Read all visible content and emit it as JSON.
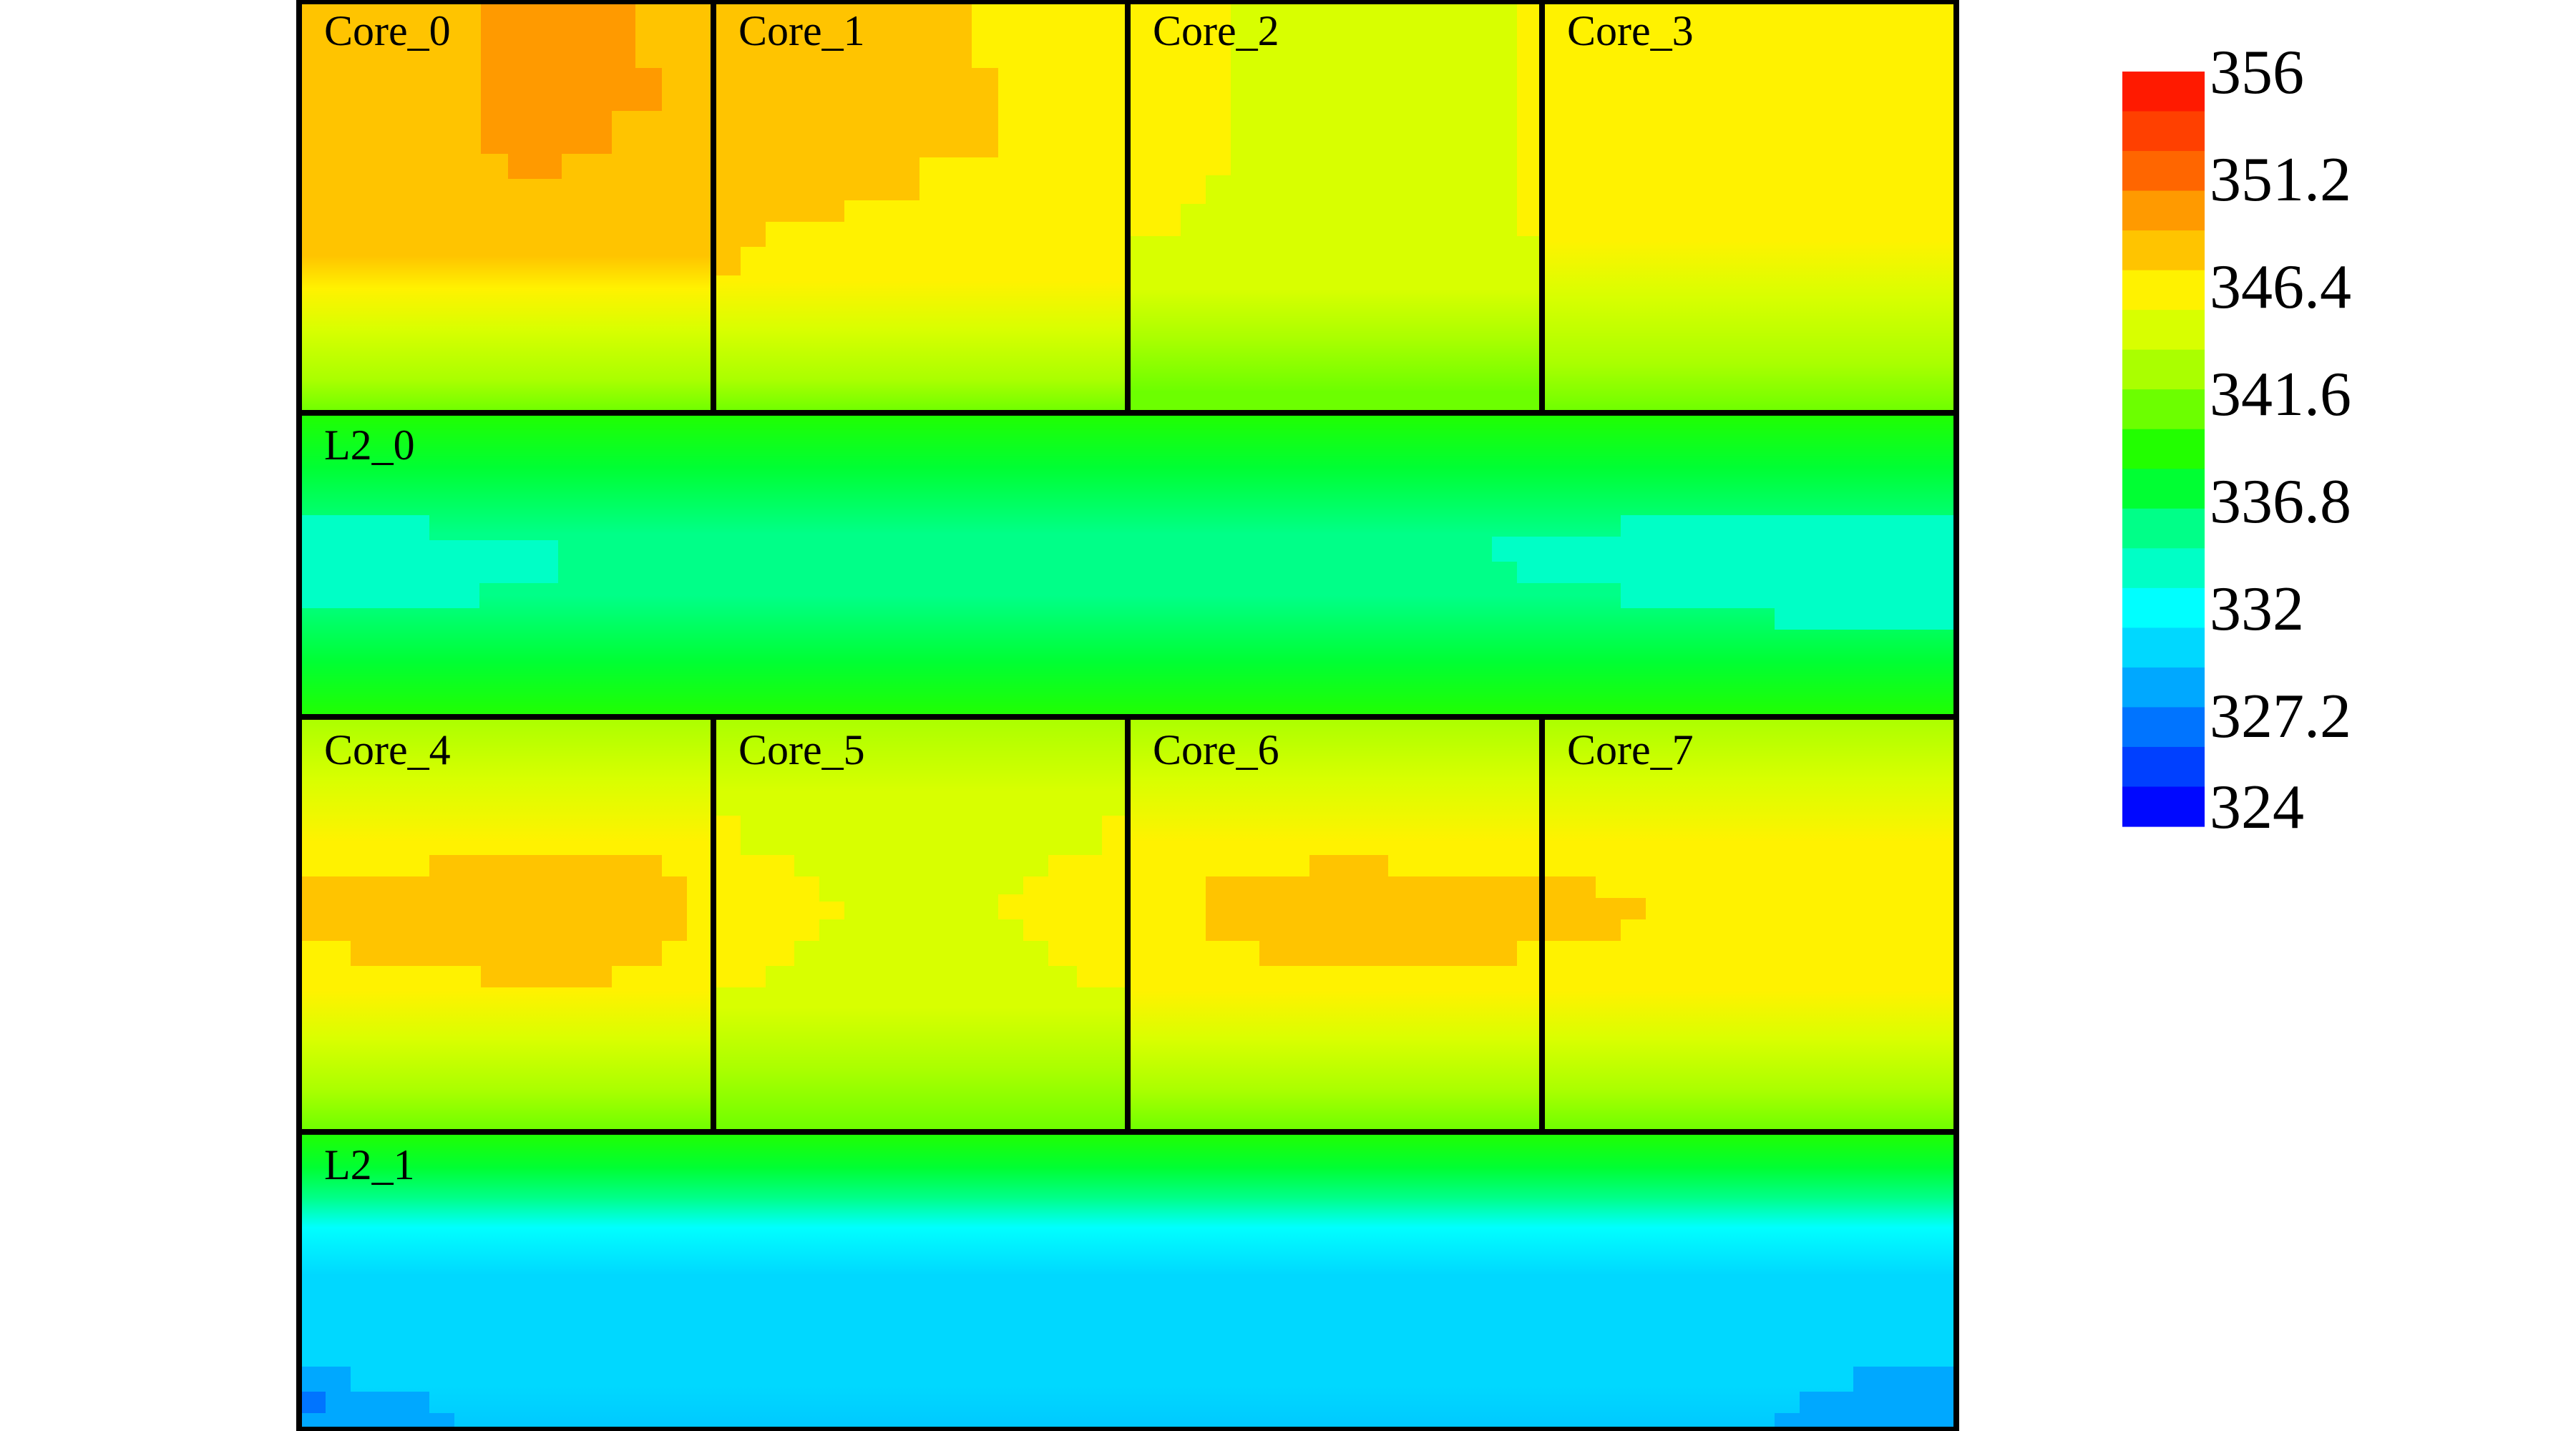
{
  "chart_data": {
    "type": "heatmap",
    "title": "",
    "xlabel": "",
    "ylabel": "",
    "grid": false,
    "legend_position": "right",
    "colorbar": {
      "min": 324,
      "max": 356,
      "tick_labels": [
        "356",
        "351.2",
        "346.4",
        "341.6",
        "336.8",
        "332",
        "327.2",
        "324"
      ],
      "tick_values": [
        356,
        351.2,
        346.4,
        341.6,
        336.8,
        332,
        327.2,
        324
      ],
      "colors_top_to_bottom": [
        "#ff1a00",
        "#ff4000",
        "#ff6600",
        "#ff9a00",
        "#ffc400",
        "#fff200",
        "#d8ff00",
        "#aaff00",
        "#6cff00",
        "#22ff00",
        "#00ff33",
        "#00ff88",
        "#00ffc6",
        "#00ffff",
        "#00d8ff",
        "#00a8ff",
        "#0074ff",
        "#0040ff",
        "#0008ff"
      ]
    },
    "blocks": [
      {
        "name": "Core_0",
        "approx_range": [
          341,
          352
        ],
        "hotspot": "top-center"
      },
      {
        "name": "Core_1",
        "approx_range": [
          341,
          350
        ],
        "hotspot": "top-left"
      },
      {
        "name": "Core_2",
        "approx_range": [
          341,
          346
        ],
        "hotspot": "top-edges"
      },
      {
        "name": "Core_3",
        "approx_range": [
          341,
          347
        ],
        "hotspot": "top"
      },
      {
        "name": "L2_0",
        "approx_range": [
          334,
          340
        ],
        "hotspot": "top-and-bottom-edges"
      },
      {
        "name": "Core_4",
        "approx_range": [
          341,
          349
        ],
        "hotspot": "center"
      },
      {
        "name": "Core_5",
        "approx_range": [
          341,
          347
        ],
        "hotspot": "middle-edges"
      },
      {
        "name": "Core_6",
        "approx_range": [
          341,
          349
        ],
        "hotspot": "center"
      },
      {
        "name": "Core_7",
        "approx_range": [
          341,
          349
        ],
        "hotspot": "middle-left"
      },
      {
        "name": "L2_1",
        "approx_range": [
          328,
          339
        ],
        "hotspot": "top"
      }
    ]
  },
  "labels": {
    "core_0": "Core_0",
    "core_1": "Core_1",
    "core_2": "Core_2",
    "core_3": "Core_3",
    "l2_0": "L2_0",
    "core_4": "Core_4",
    "core_5": "Core_5",
    "core_6": "Core_6",
    "core_7": "Core_7",
    "l2_1": "L2_1"
  },
  "colors": {
    "outline": "#000000",
    "background": "#ffffff"
  }
}
